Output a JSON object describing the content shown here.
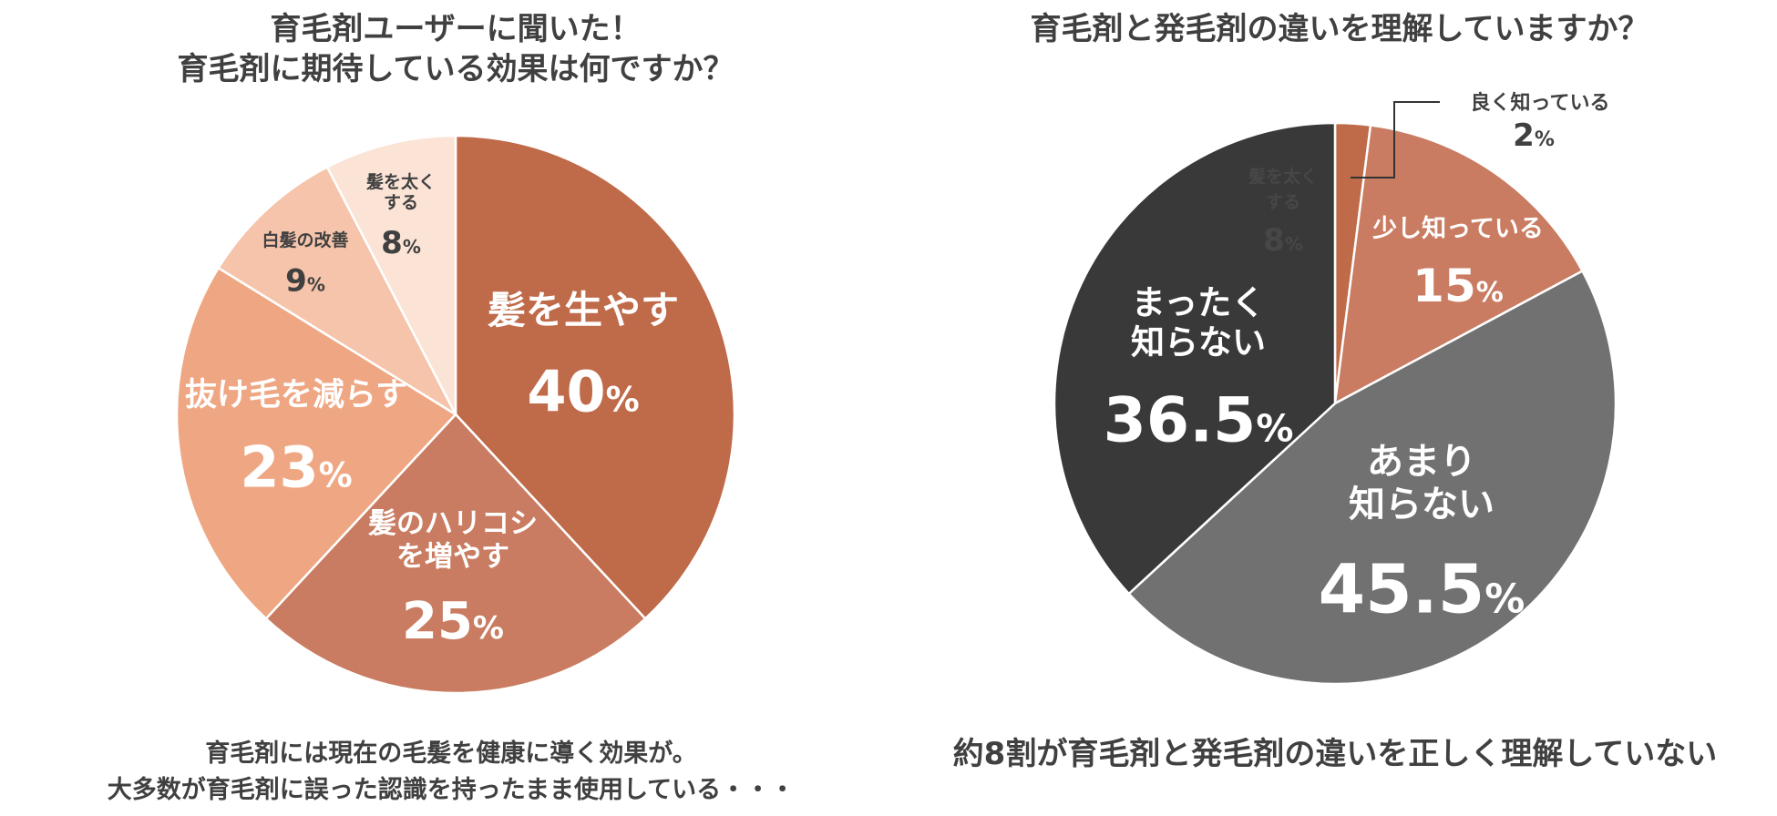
{
  "chart_data": [
    {
      "type": "pie",
      "title_line1": "育毛剤ユーザーに聞いた！",
      "title_line2": "育毛剤に期待している効果は何ですか？",
      "slices": [
        {
          "label_lines": [
            "髪を生やす"
          ],
          "value": 40,
          "display": "40",
          "color": "#bf6a49"
        },
        {
          "label_lines": [
            "髪のハリコシ",
            "を増やす"
          ],
          "value": 25,
          "display": "25",
          "color": "#c97c61"
        },
        {
          "label_lines": [
            "抜け毛を減らす"
          ],
          "value": 23,
          "display": "23",
          "color": "#efa783"
        },
        {
          "label_lines": [
            "白髪の改善"
          ],
          "value": 9,
          "display": "9",
          "color": "#f5c4ab"
        },
        {
          "label_lines": [
            "髪を太く",
            "する"
          ],
          "value": 8,
          "display": "8",
          "color": "#fbe3d6"
        }
      ],
      "caption_line1": "育毛剤には現在の毛髪を健康に導く効果が。",
      "caption_line2": "大多数が育毛剤に誤った認識を持ったまま使用している・・・"
    },
    {
      "type": "pie",
      "title_line1": "育毛剤と発毛剤の違いを理解していますか？",
      "slices": [
        {
          "label_lines": [
            "良く知っている"
          ],
          "value": 2,
          "display": "2",
          "color": "#bf6a49"
        },
        {
          "label_lines": [
            "少し知っている"
          ],
          "value": 15,
          "display": "15",
          "color": "#c97c61"
        },
        {
          "label_lines": [
            "あまり",
            "知らない"
          ],
          "value": 45.5,
          "display": "45.5",
          "color": "#717171"
        },
        {
          "label_lines": [
            "まったく",
            "知らない"
          ],
          "value": 36.5,
          "display": "36.5",
          "color": "#393939"
        }
      ],
      "ghost_label": [
        "髪を太く",
        "する",
        "8"
      ],
      "caption_line1": "約8割が育毛剤と発毛剤の違いを正しく理解していない"
    }
  ],
  "percent_sign": "%"
}
